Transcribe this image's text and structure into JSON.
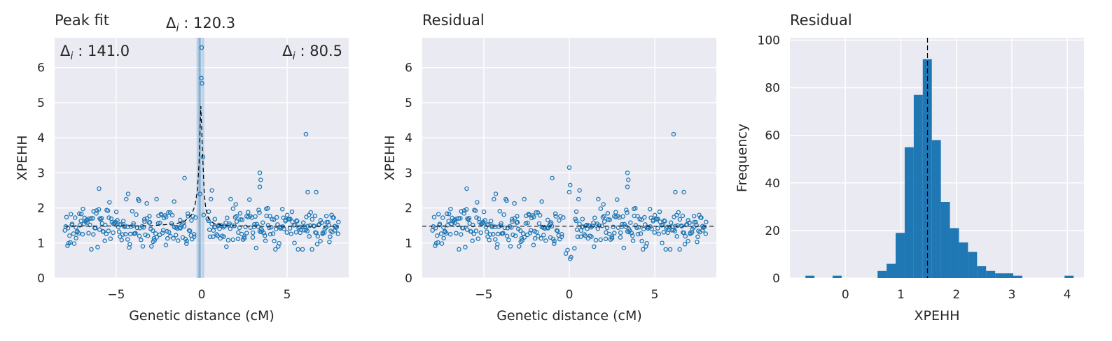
{
  "colors": {
    "axes_bg": "#eaeaf2",
    "grid": "#ffffff",
    "marker": "#1f77b4",
    "bar": "#1f77b4",
    "fit_line": "#000000",
    "highlight_band": "#1f77b4"
  },
  "chart_data": [
    {
      "type": "scatter",
      "title": "Peak fit",
      "xlabel": "Genetic distance (cM)",
      "ylabel": "XPEHH",
      "xlim": [
        -8.6,
        8.6
      ],
      "ylim": [
        0,
        6.85
      ],
      "xticks": [
        -5,
        0,
        5
      ],
      "xtick_labels": [
        "−5",
        "0",
        "5"
      ],
      "yticks": [
        0,
        1,
        2,
        3,
        4,
        5,
        6
      ],
      "ytick_labels": [
        "0",
        "1",
        "2",
        "3",
        "4",
        "5",
        "6"
      ],
      "grid": true,
      "annotations": {
        "left_delta": "Δ",
        "left_sub": "i",
        "left_value": " : 141.0",
        "center_delta": "Δ",
        "center_sub": "i",
        "center_value": " : 120.3",
        "right_delta": "Δ",
        "right_sub": "i",
        "right_value": " : 80.5"
      },
      "highlight_band": {
        "x_range": [
          -0.3,
          0.15
        ],
        "center": -0.12
      },
      "fit_curve": {
        "baseline": 1.48,
        "peak_x": -0.05,
        "peak_y": 4.9,
        "x": [
          -8,
          -3,
          -1.5,
          -1,
          -0.6,
          -0.4,
          -0.25,
          -0.15,
          -0.05,
          0.05,
          0.15,
          0.25,
          0.4,
          0.7,
          1.2,
          3,
          8
        ],
        "y": [
          1.48,
          1.49,
          1.55,
          1.62,
          1.8,
          2.05,
          2.5,
          3.3,
          4.9,
          3.6,
          2.4,
          1.95,
          1.7,
          1.56,
          1.5,
          1.48,
          1.48
        ]
      },
      "highlighted_points": [
        {
          "x": 0.0,
          "y": 6.57
        },
        {
          "x": -0.02,
          "y": 5.7
        },
        {
          "x": 0.02,
          "y": 5.55
        },
        {
          "x": 0.08,
          "y": 3.45
        },
        {
          "x": -0.1,
          "y": 2.4
        },
        {
          "x": 0.12,
          "y": 1.8
        }
      ],
      "outlier_points": [
        {
          "x": -6.0,
          "y": 2.55
        },
        {
          "x": -4.3,
          "y": 2.4
        },
        {
          "x": -1.0,
          "y": 2.85
        },
        {
          "x": 0.6,
          "y": 2.5
        },
        {
          "x": 3.4,
          "y": 3.0
        },
        {
          "x": 3.45,
          "y": 2.8
        },
        {
          "x": 3.4,
          "y": 2.6
        },
        {
          "x": 6.1,
          "y": 4.1
        },
        {
          "x": 6.2,
          "y": 2.45
        },
        {
          "x": 6.7,
          "y": 2.45
        }
      ]
    },
    {
      "type": "scatter",
      "title": "Residual",
      "xlabel": "Genetic distance (cM)",
      "ylabel": "XPEHH",
      "xlim": [
        -8.6,
        8.6
      ],
      "ylim": [
        0,
        6.85
      ],
      "xticks": [
        -5,
        0,
        5
      ],
      "xtick_labels": [
        "−5",
        "0",
        "5"
      ],
      "yticks": [
        0,
        1,
        2,
        3,
        4,
        5,
        6
      ],
      "ytick_labels": [
        "0",
        "1",
        "2",
        "3",
        "4",
        "5",
        "6"
      ],
      "grid": true,
      "reference_line_y": 1.48,
      "special_points": [
        {
          "x": 0.0,
          "y": 3.15
        },
        {
          "x": 0.05,
          "y": 2.65
        },
        {
          "x": 0.0,
          "y": 2.45
        },
        {
          "x": -0.2,
          "y": 0.7
        },
        {
          "x": -0.1,
          "y": 0.8
        },
        {
          "x": 0.1,
          "y": 0.6
        },
        {
          "x": 0.05,
          "y": 0.55
        },
        {
          "x": 0.3,
          "y": 0.85
        },
        {
          "x": 0.6,
          "y": 2.5
        },
        {
          "x": -1.0,
          "y": 2.85
        }
      ],
      "outlier_points": [
        {
          "x": -6.0,
          "y": 2.55
        },
        {
          "x": -4.3,
          "y": 2.4
        },
        {
          "x": 3.4,
          "y": 3.0
        },
        {
          "x": 3.45,
          "y": 2.8
        },
        {
          "x": 3.4,
          "y": 2.6
        },
        {
          "x": 6.1,
          "y": 4.1
        },
        {
          "x": 6.2,
          "y": 2.45
        },
        {
          "x": 6.7,
          "y": 2.45
        }
      ]
    },
    {
      "type": "bar",
      "title": "Residual",
      "xlabel": "XPEHH",
      "ylabel": "Frequency",
      "xlim": [
        -1.0,
        4.3
      ],
      "ylim": [
        0,
        101
      ],
      "xticks": [
        0,
        1,
        2,
        3,
        4
      ],
      "xtick_labels": [
        "0",
        "1",
        "2",
        "3",
        "4"
      ],
      "yticks": [
        0,
        20,
        40,
        60,
        80,
        100
      ],
      "ytick_labels": [
        "0",
        "20",
        "40",
        "60",
        "80",
        "100"
      ],
      "grid": true,
      "bin_width": 0.163,
      "bins": [
        {
          "x0": -0.72,
          "count": 1
        },
        {
          "x0": -0.23,
          "count": 1
        },
        {
          "x0": 0.58,
          "count": 3
        },
        {
          "x0": 0.743,
          "count": 6
        },
        {
          "x0": 0.906,
          "count": 19
        },
        {
          "x0": 1.069,
          "count": 55
        },
        {
          "x0": 1.232,
          "count": 77
        },
        {
          "x0": 1.395,
          "count": 92
        },
        {
          "x0": 1.558,
          "count": 58
        },
        {
          "x0": 1.721,
          "count": 32
        },
        {
          "x0": 1.884,
          "count": 21
        },
        {
          "x0": 2.047,
          "count": 15
        },
        {
          "x0": 2.21,
          "count": 11
        },
        {
          "x0": 2.373,
          "count": 5
        },
        {
          "x0": 2.536,
          "count": 3
        },
        {
          "x0": 2.699,
          "count": 2
        },
        {
          "x0": 2.862,
          "count": 2
        },
        {
          "x0": 3.025,
          "count": 1
        },
        {
          "x0": 3.95,
          "count": 1
        }
      ],
      "reference_line_x": 1.48
    }
  ]
}
